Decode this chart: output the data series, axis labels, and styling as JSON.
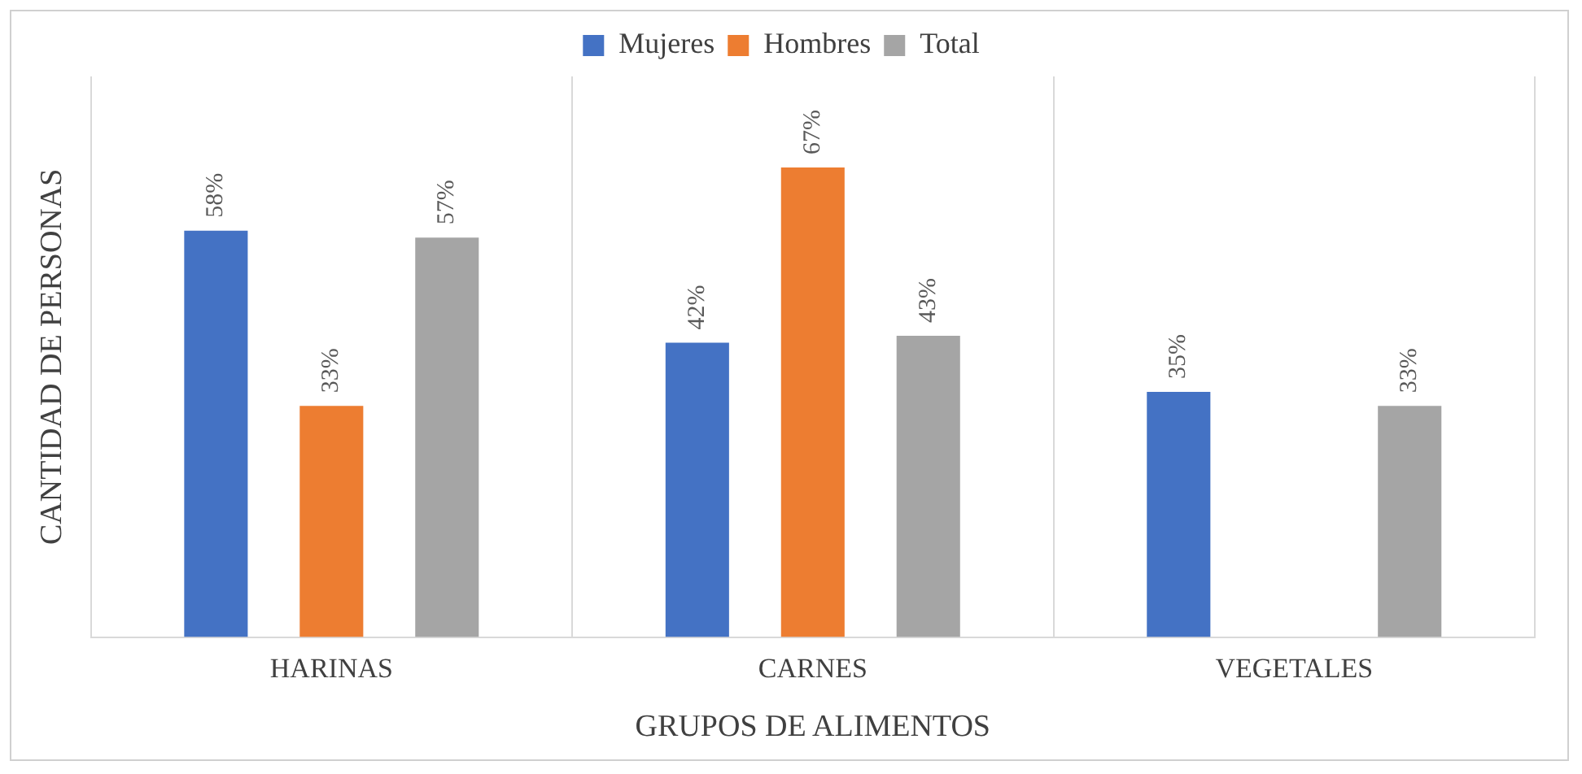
{
  "chart_data": {
    "type": "bar",
    "xlabel": "GRUPOS DE ALIMENTOS",
    "ylabel": "CANTIDAD DE PERSONAS",
    "categories": [
      "HARINAS",
      "CARNES",
      "VEGETALES"
    ],
    "series": [
      {
        "name": "Mujeres",
        "color": "#4472c4",
        "values": [
          58,
          42,
          35
        ],
        "value_labels": [
          "58%",
          "42%",
          "35%"
        ]
      },
      {
        "name": "Hombres",
        "color": "#ed7d31",
        "values": [
          33,
          67,
          null
        ],
        "value_labels": [
          "33%",
          "67%",
          null
        ]
      },
      {
        "name": "Total",
        "color": "#a5a5a5",
        "values": [
          57,
          43,
          33
        ],
        "value_labels": [
          "57%",
          "43%",
          "33%"
        ]
      }
    ],
    "legend": "top",
    "grid": "x",
    "tick_labels": "x"
  }
}
